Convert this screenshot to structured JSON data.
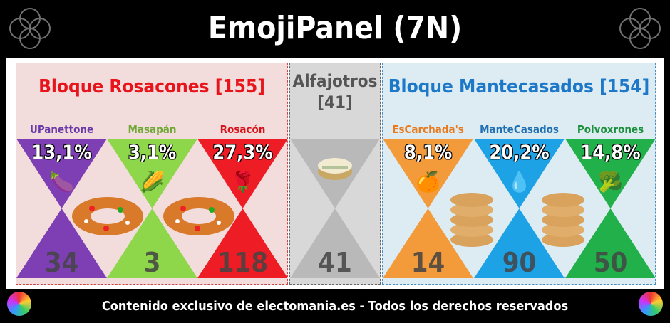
{
  "title": "EmojiPanel (7N)",
  "footer": "Contenido exclusivo de electomania.es - Todos los derechos reservados",
  "blocks": {
    "left": {
      "title": "Bloque Rosacones [155]"
    },
    "mid": {
      "title_line1": "Alfajotros",
      "title_line2": "[41]"
    },
    "right": {
      "title": "Bloque Mantecasados [154]"
    }
  },
  "parties": [
    {
      "name": "UPanettone",
      "pct": "13,1%",
      "emoji": "🍆",
      "seats": "34",
      "name_color": "#6a3aa8",
      "color": "#7e3fb4"
    },
    {
      "name": "Masapán",
      "pct": "3,1%",
      "emoji": "🌽",
      "seats": "3",
      "name_color": "#6fa835",
      "color": "#8ed64a"
    },
    {
      "name": "Rosacón",
      "pct": "27,3%",
      "emoji": "🌹",
      "seats": "118",
      "name_color": "#d8141b",
      "color": "#ee1c25"
    },
    {
      "name": "Alfajotros",
      "pct": "",
      "emoji": "",
      "seats": "41",
      "name_color": "#555555",
      "color": "#b9b9b9"
    },
    {
      "name": "EsCarchada's",
      "pct": "8,1%",
      "emoji": "🍊",
      "seats": "14",
      "name_color": "#e87b20",
      "color": "#f39a3a"
    },
    {
      "name": "ManteCasados",
      "pct": "20,2%",
      "emoji": "💧",
      "seats": "90",
      "name_color": "#1f6fb3",
      "color": "#1ea2e6"
    },
    {
      "name": "Polvoxrones",
      "pct": "14,8%",
      "emoji": "🥦",
      "seats": "50",
      "name_color": "#1c8f3c",
      "color": "#22b04b"
    }
  ],
  "colors": {
    "left_bg": "#f3dcdc",
    "mid_bg": "#d8d8d8",
    "right_bg": "#dcecf2",
    "left_title": "#e8141b",
    "right_title": "#1e78c8"
  }
}
